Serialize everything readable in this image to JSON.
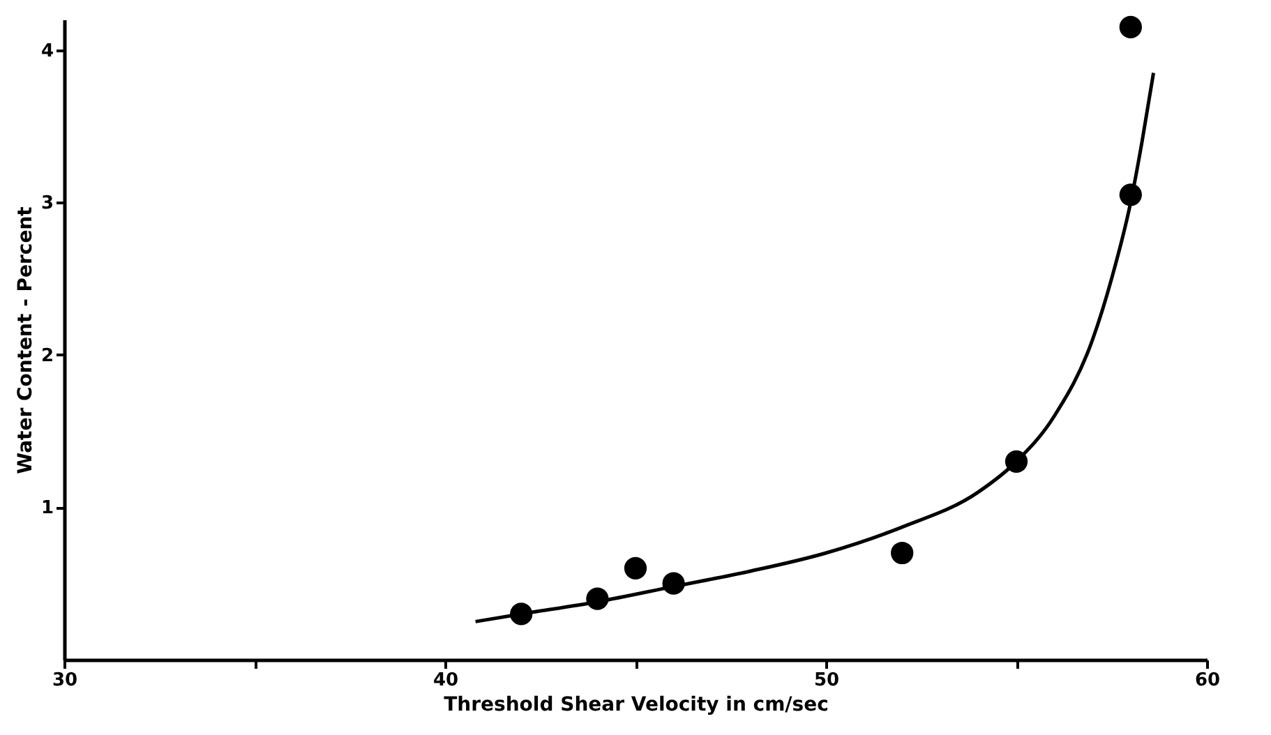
{
  "chart_data": {
    "type": "scatter",
    "xlabel": "Threshold Shear Velocity in cm/sec",
    "ylabel": "Water Content - Percent",
    "xlim": [
      30,
      60
    ],
    "ylim": [
      0,
      4.2
    ],
    "xticks": [
      30,
      {
        "value": 35,
        "label": null
      },
      40,
      {
        "value": 45,
        "label": null
      },
      50,
      {
        "value": 55,
        "label": null
      },
      60
    ],
    "yticks": [
      1,
      2,
      3,
      4
    ],
    "grid": false,
    "series": [
      {
        "color": "#000000",
        "marker": "circle",
        "x": [
          42,
          44,
          45,
          46,
          52,
          55,
          58,
          58
        ],
        "values": [
          0.3,
          0.4,
          0.6,
          0.5,
          0.7,
          1.3,
          3.05,
          4.15
        ]
      },
      {
        "type": "line",
        "color": "#000000",
        "marker": "none",
        "line_style": "solid",
        "x": [
          40.8,
          42,
          44,
          46,
          48,
          50,
          52,
          54,
          55,
          56,
          57,
          57.5,
          58,
          58.3,
          58.6
        ],
        "values": [
          0.25,
          0.3,
          0.38,
          0.48,
          0.58,
          0.7,
          0.87,
          1.1,
          1.3,
          1.6,
          2.1,
          2.5,
          3.0,
          3.4,
          3.85
        ]
      }
    ]
  }
}
